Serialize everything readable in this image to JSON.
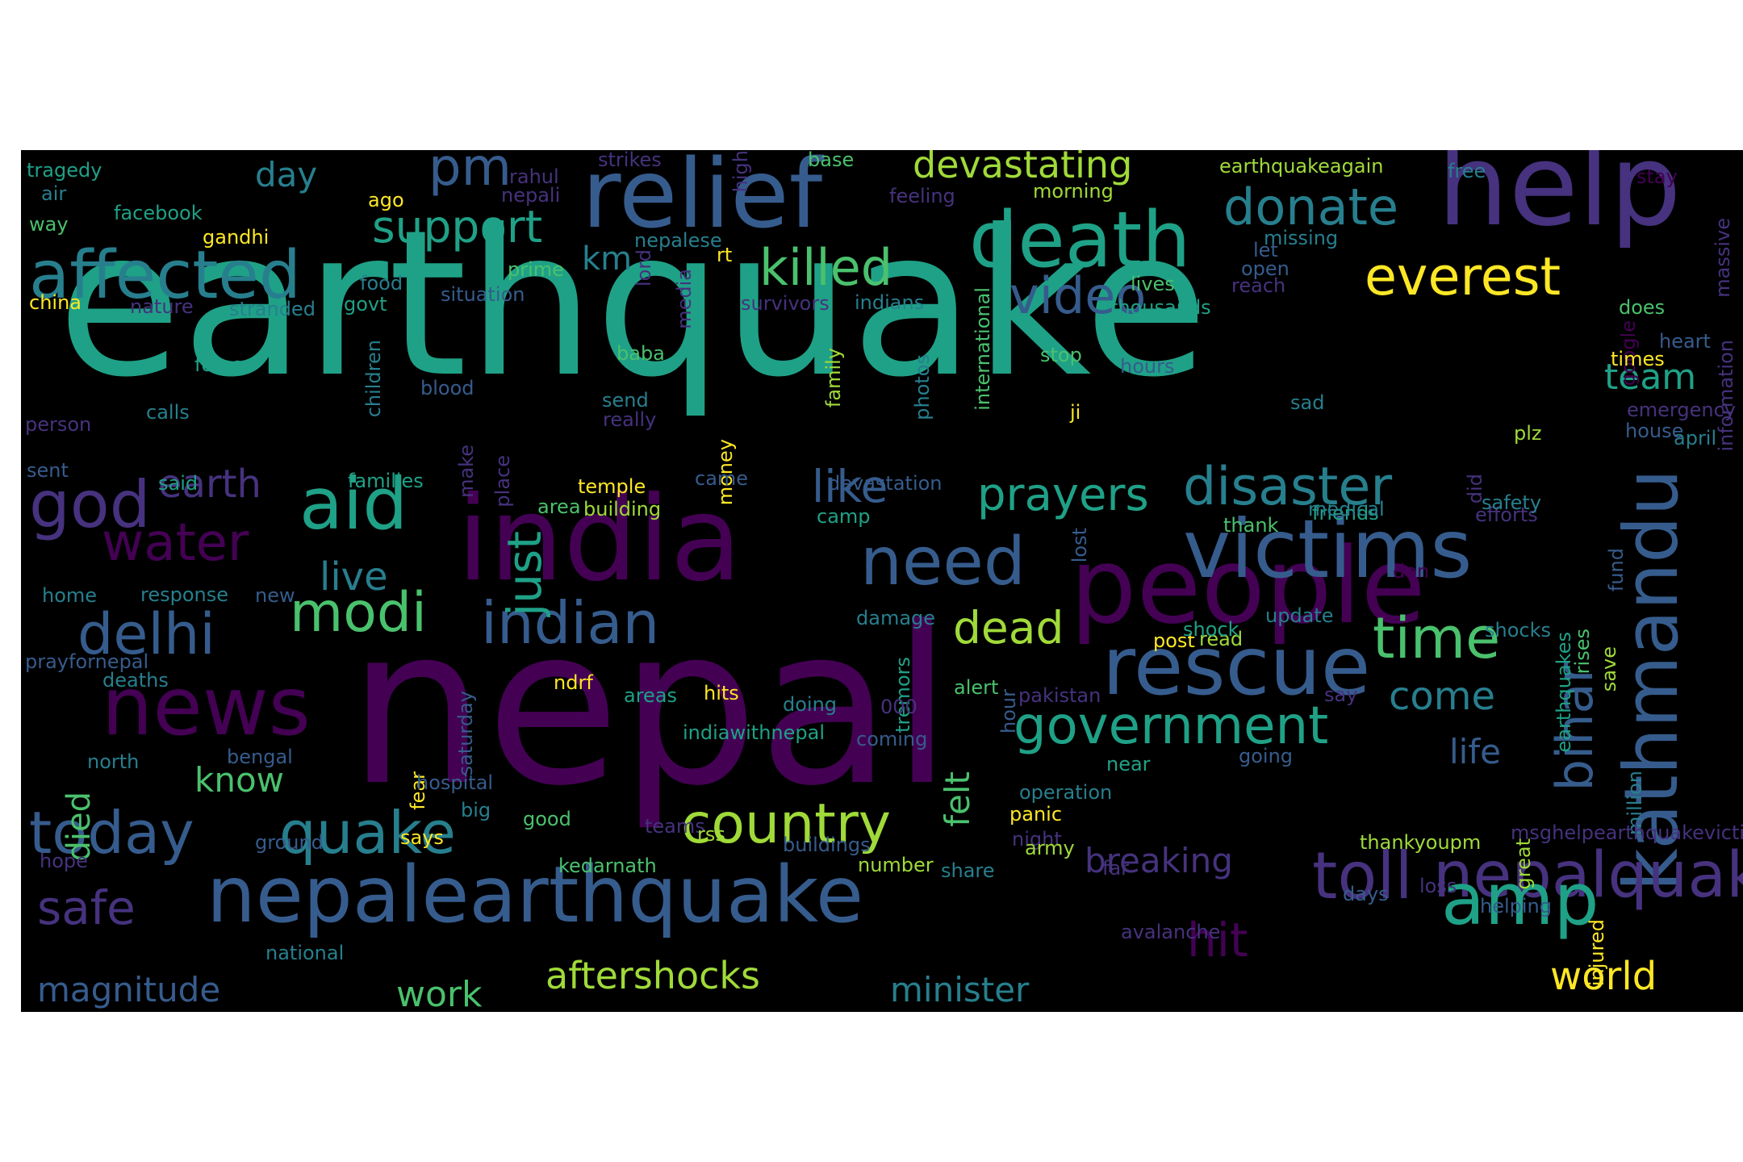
{
  "background": "#000000",
  "page_background": "#ffffff",
  "palette": {
    "v1": "#440154",
    "v2": "#46327e",
    "v3": "#365c8d",
    "v4": "#277f8e",
    "v5": "#1fa187",
    "v6": "#4ac16d",
    "v7": "#a0da39",
    "v8": "#fde725"
  },
  "words": [
    {
      "text": "earthquake",
      "color": "v5"
    },
    {
      "text": "nepal",
      "color": "v1"
    },
    {
      "text": "india",
      "color": "v1"
    },
    {
      "text": "people",
      "color": "v1"
    },
    {
      "text": "nepalearthquake",
      "color": "v3"
    },
    {
      "text": "help",
      "color": "v2"
    },
    {
      "text": "relief",
      "color": "v3"
    },
    {
      "text": "death",
      "color": "v5"
    },
    {
      "text": "victims",
      "color": "v3"
    },
    {
      "text": "news",
      "color": "v1"
    },
    {
      "text": "kathmandu",
      "color": "v3"
    },
    {
      "text": "affected",
      "color": "v4"
    },
    {
      "text": "rescue",
      "color": "v3"
    },
    {
      "text": "need",
      "color": "v3"
    },
    {
      "text": "indian",
      "color": "v3"
    },
    {
      "text": "nepalquake",
      "color": "v2"
    },
    {
      "text": "amp",
      "color": "v5"
    },
    {
      "text": "toll",
      "color": "v2"
    },
    {
      "text": "aid",
      "color": "v5"
    },
    {
      "text": "god",
      "color": "v2"
    },
    {
      "text": "today",
      "color": "v3"
    },
    {
      "text": "quake",
      "color": "v4"
    },
    {
      "text": "delhi",
      "color": "v3"
    },
    {
      "text": "modi",
      "color": "v6"
    },
    {
      "text": "country",
      "color": "v7"
    },
    {
      "text": "government",
      "color": "v5"
    },
    {
      "text": "time",
      "color": "v6"
    },
    {
      "text": "everest",
      "color": "v8"
    },
    {
      "text": "disaster",
      "color": "v4"
    },
    {
      "text": "prayers",
      "color": "v5"
    },
    {
      "text": "killed",
      "color": "v6"
    },
    {
      "text": "video",
      "color": "v3"
    },
    {
      "text": "donate",
      "color": "v4"
    },
    {
      "text": "pm",
      "color": "v3"
    },
    {
      "text": "support",
      "color": "v5"
    },
    {
      "text": "water",
      "color": "v1"
    },
    {
      "text": "dead",
      "color": "v7"
    },
    {
      "text": "bihar",
      "color": "v3"
    },
    {
      "text": "safe",
      "color": "v2"
    },
    {
      "text": "hit",
      "color": "v1"
    },
    {
      "text": "devastating",
      "color": "v7"
    },
    {
      "text": "like",
      "color": "v3"
    },
    {
      "text": "just",
      "color": "v5"
    },
    {
      "text": "live",
      "color": "v4"
    },
    {
      "text": "earth",
      "color": "v2"
    },
    {
      "text": "come",
      "color": "v4"
    },
    {
      "text": "aftershocks",
      "color": "v7"
    },
    {
      "text": "world",
      "color": "v8"
    },
    {
      "text": "magnitude",
      "color": "v3"
    },
    {
      "text": "minister",
      "color": "v4"
    },
    {
      "text": "work",
      "color": "v6"
    },
    {
      "text": "breaking",
      "color": "v2"
    },
    {
      "text": "team",
      "color": "v5"
    },
    {
      "text": "life",
      "color": "v3"
    },
    {
      "text": "know",
      "color": "v6"
    },
    {
      "text": "felt",
      "color": "v6"
    },
    {
      "text": "day",
      "color": "v4"
    },
    {
      "text": "km",
      "color": "v4"
    },
    {
      "text": "died",
      "color": "v6"
    },
    {
      "text": "tragedy",
      "color": "v5"
    },
    {
      "text": "strikes",
      "color": "v2"
    },
    {
      "text": "base",
      "color": "v6"
    },
    {
      "text": "earthquakeagain",
      "color": "v7"
    },
    {
      "text": "free",
      "color": "v4"
    },
    {
      "text": "stay",
      "color": "v1"
    },
    {
      "text": "air",
      "color": "v4"
    },
    {
      "text": "facebook",
      "color": "v5"
    },
    {
      "text": "way",
      "color": "v6"
    },
    {
      "text": "gandhi",
      "color": "v8"
    },
    {
      "text": "rahul",
      "color": "v2"
    },
    {
      "text": "nepali",
      "color": "v2"
    },
    {
      "text": "high",
      "color": "v2"
    },
    {
      "text": "ago",
      "color": "v8"
    },
    {
      "text": "feeling",
      "color": "v2"
    },
    {
      "text": "morning",
      "color": "v7"
    },
    {
      "text": "massive",
      "color": "v2"
    },
    {
      "text": "food",
      "color": "v4"
    },
    {
      "text": "prime",
      "color": "v6"
    },
    {
      "text": "nepalese",
      "color": "v4"
    },
    {
      "text": "rt",
      "color": "v8"
    },
    {
      "text": "missing",
      "color": "v4"
    },
    {
      "text": "let",
      "color": "v3"
    },
    {
      "text": "open",
      "color": "v3"
    },
    {
      "text": "reach",
      "color": "v2"
    },
    {
      "text": "lives",
      "color": "v6"
    },
    {
      "text": "china",
      "color": "v8"
    },
    {
      "text": "nature",
      "color": "v2"
    },
    {
      "text": "stranded",
      "color": "v4"
    },
    {
      "text": "govt",
      "color": "v5"
    },
    {
      "text": "situation",
      "color": "v3"
    },
    {
      "text": "lord",
      "color": "v2"
    },
    {
      "text": "media",
      "color": "v2"
    },
    {
      "text": "survivors",
      "color": "v2"
    },
    {
      "text": "indians",
      "color": "v4"
    },
    {
      "text": "international",
      "color": "v6"
    },
    {
      "text": "thousands",
      "color": "v5"
    },
    {
      "text": "does",
      "color": "v6"
    },
    {
      "text": "google",
      "color": "v1"
    },
    {
      "text": "heart",
      "color": "v3"
    },
    {
      "text": "force",
      "color": "v5"
    },
    {
      "text": "children",
      "color": "v4"
    },
    {
      "text": "baba",
      "color": "v6"
    },
    {
      "text": "family",
      "color": "v7"
    },
    {
      "text": "photos",
      "color": "v4"
    },
    {
      "text": "stop",
      "color": "v6"
    },
    {
      "text": "hours",
      "color": "v3"
    },
    {
      "text": "times",
      "color": "v8"
    },
    {
      "text": "information",
      "color": "v2"
    },
    {
      "text": "blood",
      "color": "v3"
    },
    {
      "text": "send",
      "color": "v4"
    },
    {
      "text": "calls",
      "color": "v4"
    },
    {
      "text": "really",
      "color": "v2"
    },
    {
      "text": "sad",
      "color": "v4"
    },
    {
      "text": "ji",
      "color": "v8"
    },
    {
      "text": "emergency",
      "color": "v2"
    },
    {
      "text": "house",
      "color": "v3"
    },
    {
      "text": "gt",
      "color": "v1"
    },
    {
      "text": "person",
      "color": "v2"
    },
    {
      "text": "make",
      "color": "v2"
    },
    {
      "text": "place",
      "color": "v2"
    },
    {
      "text": "money",
      "color": "v8"
    },
    {
      "text": "plz",
      "color": "v7"
    },
    {
      "text": "april",
      "color": "v4"
    },
    {
      "text": "sent",
      "color": "v3"
    },
    {
      "text": "said",
      "color": "v5"
    },
    {
      "text": "families",
      "color": "v5"
    },
    {
      "text": "temple",
      "color": "v8"
    },
    {
      "text": "came",
      "color": "v3"
    },
    {
      "text": "devastation",
      "color": "v3"
    },
    {
      "text": "did",
      "color": "v2"
    },
    {
      "text": "area",
      "color": "v6"
    },
    {
      "text": "building",
      "color": "v7"
    },
    {
      "text": "camp",
      "color": "v5"
    },
    {
      "text": "efforts",
      "color": "v2"
    },
    {
      "text": "safety",
      "color": "v4"
    },
    {
      "text": "friends",
      "color": "v5"
    },
    {
      "text": "lost",
      "color": "v3"
    },
    {
      "text": "thank",
      "color": "v6"
    },
    {
      "text": "medical",
      "color": "v4"
    },
    {
      "text": "fund",
      "color": "v3"
    },
    {
      "text": "home",
      "color": "v4"
    },
    {
      "text": "response",
      "color": "v4"
    },
    {
      "text": "new",
      "color": "v3"
    },
    {
      "text": "don",
      "color": "v1"
    },
    {
      "text": "damage",
      "color": "v4"
    },
    {
      "text": "update",
      "color": "v4"
    },
    {
      "text": "post",
      "color": "v8"
    },
    {
      "text": "read",
      "color": "v7"
    },
    {
      "text": "shocks",
      "color": "v4"
    },
    {
      "text": "rises",
      "color": "v6"
    },
    {
      "text": "save",
      "color": "v7"
    },
    {
      "text": "earthquakes",
      "color": "v5"
    },
    {
      "text": "prayfornepal",
      "color": "v3"
    },
    {
      "text": "deaths",
      "color": "v4"
    },
    {
      "text": "shock",
      "color": "v5"
    },
    {
      "text": "ndrf",
      "color": "v8"
    },
    {
      "text": "areas",
      "color": "v5"
    },
    {
      "text": "hits",
      "color": "v8"
    },
    {
      "text": "doing",
      "color": "v4"
    },
    {
      "text": "tremors",
      "color": "v5"
    },
    {
      "text": "alert",
      "color": "v6"
    },
    {
      "text": "pakistan",
      "color": "v2"
    },
    {
      "text": "say",
      "color": "v2"
    },
    {
      "text": "saturday",
      "color": "v3"
    },
    {
      "text": "000",
      "color": "v2"
    },
    {
      "text": "hour",
      "color": "v3"
    },
    {
      "text": "indiawithnepal",
      "color": "v5"
    },
    {
      "text": "coming",
      "color": "v3"
    },
    {
      "text": "million",
      "color": "v4"
    },
    {
      "text": "north",
      "color": "v4"
    },
    {
      "text": "bengal",
      "color": "v3"
    },
    {
      "text": "fear",
      "color": "v8"
    },
    {
      "text": "hospital",
      "color": "v3"
    },
    {
      "text": "operation",
      "color": "v4"
    },
    {
      "text": "near",
      "color": "v5"
    },
    {
      "text": "going",
      "color": "v3"
    },
    {
      "text": "panic",
      "color": "v8"
    },
    {
      "text": "big",
      "color": "v4"
    },
    {
      "text": "good",
      "color": "v6"
    },
    {
      "text": "teams",
      "color": "v2"
    },
    {
      "text": "night",
      "color": "v2"
    },
    {
      "text": "ground",
      "color": "v3"
    },
    {
      "text": "says",
      "color": "v8"
    },
    {
      "text": "rss",
      "color": "v7"
    },
    {
      "text": "buildings",
      "color": "v3"
    },
    {
      "text": "army",
      "color": "v7"
    },
    {
      "text": "msghelpearthquakevictims",
      "color": "v2"
    },
    {
      "text": "thankyoupm",
      "color": "v7"
    },
    {
      "text": "great",
      "color": "v7"
    },
    {
      "text": "hope",
      "color": "v2"
    },
    {
      "text": "kedarnath",
      "color": "v6"
    },
    {
      "text": "number",
      "color": "v7"
    },
    {
      "text": "share",
      "color": "v4"
    },
    {
      "text": "far",
      "color": "v2"
    },
    {
      "text": "days",
      "color": "v3"
    },
    {
      "text": "loss",
      "color": "v2"
    },
    {
      "text": "injured",
      "color": "v8"
    },
    {
      "text": "helping",
      "color": "v3"
    },
    {
      "text": "avalanche",
      "color": "v2"
    },
    {
      "text": "national",
      "color": "v4"
    }
  ]
}
